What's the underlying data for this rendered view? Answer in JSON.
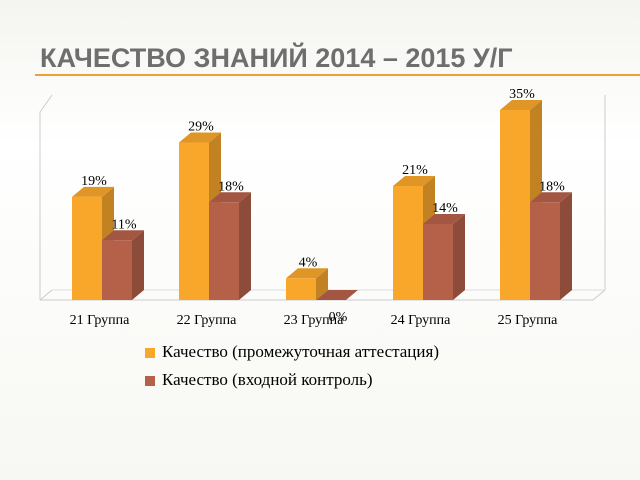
{
  "chart_data": {
    "type": "bar3d",
    "title": "КАЧЕСТВО ЗНАНИЙ 2014 – 2015 У/Г",
    "categories": [
      "21 Группа",
      "22 Группа",
      "23 Группа",
      "24 Группа",
      "25 Группа"
    ],
    "series": [
      {
        "name": "Качество (промежуточная аттестация)",
        "color": "#f9a72b",
        "values": [
          19,
          29,
          4,
          21,
          35
        ],
        "value_labels": [
          "19%",
          "29%",
          "4%",
          "21%",
          "35%"
        ]
      },
      {
        "name": "Качество (входной контроль)",
        "color": "#b5614a",
        "values": [
          11,
          18,
          0,
          14,
          18
        ],
        "value_labels": [
          "11%",
          "18%",
          "0%",
          "14%",
          "18%"
        ]
      }
    ],
    "legend": "bottom"
  }
}
